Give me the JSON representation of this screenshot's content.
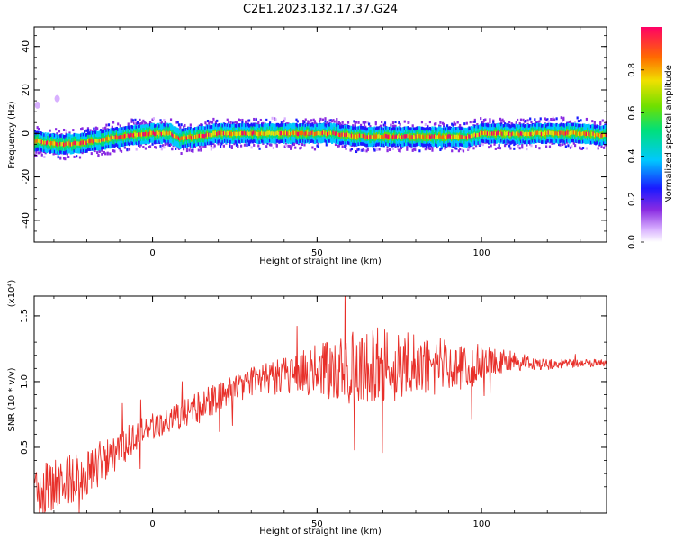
{
  "figure": {
    "title": "C2E1.2023.132.17.37.G24"
  },
  "chart_data": [
    {
      "type": "heatmap",
      "xlabel": "Height of straight line (km)",
      "ylabel": "Frequency (Hz)",
      "xlim": [
        -36,
        138
      ],
      "ylim": [
        -50,
        49
      ],
      "xticks": [
        0,
        50,
        100
      ],
      "yticks": [
        -40,
        -20,
        0,
        20,
        40
      ],
      "colorbar": {
        "label": "Normalized spectral amplitude",
        "range": [
          0,
          1
        ],
        "ticks": [
          0.0,
          0.2,
          0.4,
          0.6,
          0.8
        ]
      },
      "ridge": {
        "x": [
          -36,
          -30,
          -25,
          -20,
          -15,
          -10,
          -5,
          0,
          5,
          8,
          10,
          15,
          20,
          30,
          40,
          50,
          55,
          60,
          65,
          70,
          80,
          90,
          95,
          100,
          105,
          110,
          115,
          120,
          130,
          138
        ],
        "y": [
          -3.5,
          -5.0,
          -4.8,
          -4.0,
          -3.0,
          -1.5,
          -0.5,
          0.0,
          0.0,
          -2.5,
          -2.0,
          -1.0,
          0.0,
          0.0,
          0.0,
          0.0,
          0.0,
          -1.0,
          -1.5,
          -1.5,
          -1.5,
          -1.5,
          -1.8,
          0.0,
          0.0,
          -0.5,
          0.0,
          0.0,
          0.0,
          -1.0
        ]
      },
      "outliers": [
        {
          "x": -35,
          "y": 13
        },
        {
          "x": -29,
          "y": 16
        }
      ]
    },
    {
      "type": "line",
      "xlabel": "Height of straight line (km)",
      "ylabel": "SNR (10 * v/v)",
      "y_multiplier": "(x10⁴)",
      "xlim": [
        -36,
        138
      ],
      "ylim": [
        0,
        1.65
      ],
      "xticks": [
        0,
        50,
        100
      ],
      "yticks": [
        0.5,
        1.0,
        1.5
      ],
      "series": [
        {
          "color": "#e8302a",
          "envelope_x": [
            -36,
            -30,
            -20,
            -10,
            0,
            10,
            20,
            30,
            40,
            50,
            60,
            70,
            80,
            90,
            97,
            100,
            105,
            110,
            115,
            120,
            130,
            138
          ],
          "envelope_y": [
            0.18,
            0.22,
            0.3,
            0.5,
            0.66,
            0.75,
            0.88,
            1.0,
            1.05,
            1.08,
            1.1,
            1.12,
            1.12,
            1.12,
            1.15,
            1.15,
            1.15,
            1.15,
            1.14,
            1.13,
            1.14,
            1.14
          ],
          "noise_x": [
            -36,
            -30,
            -20,
            -10,
            0,
            10,
            20,
            30,
            40,
            50,
            60,
            70,
            80,
            90,
            97,
            100,
            105,
            110,
            115,
            120,
            130,
            138
          ],
          "noise_y": [
            0.2,
            0.2,
            0.18,
            0.15,
            0.1,
            0.12,
            0.12,
            0.12,
            0.14,
            0.2,
            0.28,
            0.3,
            0.26,
            0.2,
            0.2,
            0.12,
            0.1,
            0.08,
            0.05,
            0.04,
            0.03,
            0.03
          ]
        }
      ]
    }
  ]
}
